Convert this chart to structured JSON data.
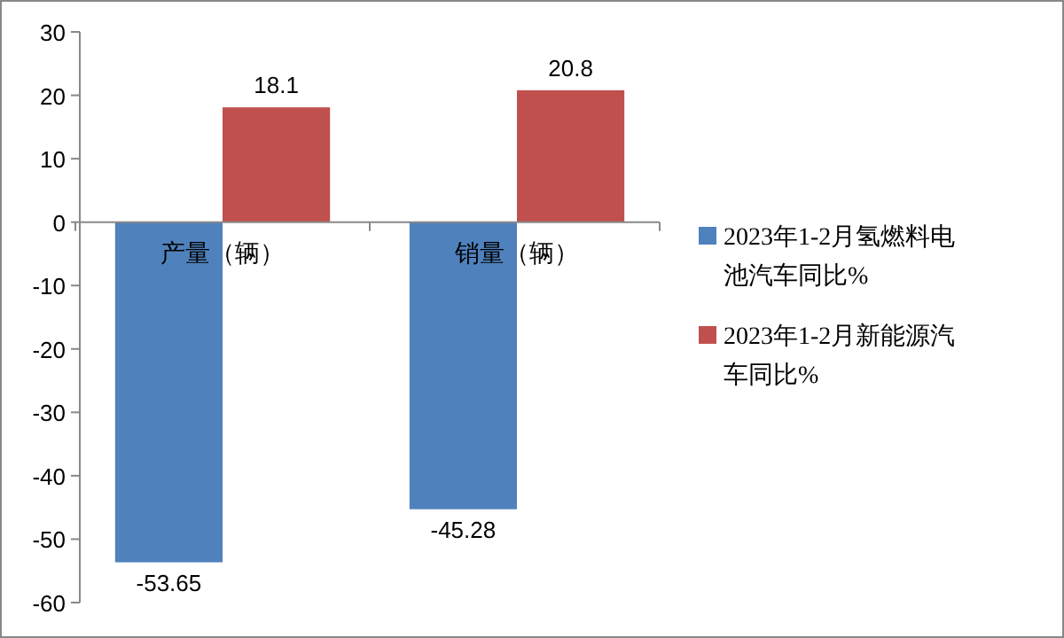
{
  "chart_data": {
    "type": "bar",
    "categories": [
      "产量（辆）",
      "销量（辆）"
    ],
    "series": [
      {
        "name": "2023年1-2月氢燃料电池汽车同比%",
        "color": "#4f81bd",
        "values": [
          -53.65,
          -45.28
        ]
      },
      {
        "name": "2023年1-2月新能源汽车同比%",
        "color": "#c0504d",
        "values": [
          18.1,
          20.8
        ]
      }
    ],
    "ylim": [
      -60,
      30
    ],
    "yticks": [
      -60,
      -50,
      -40,
      -30,
      -20,
      -10,
      0,
      10,
      20,
      30
    ],
    "data_labels": true,
    "legend": "right",
    "grid": false
  }
}
